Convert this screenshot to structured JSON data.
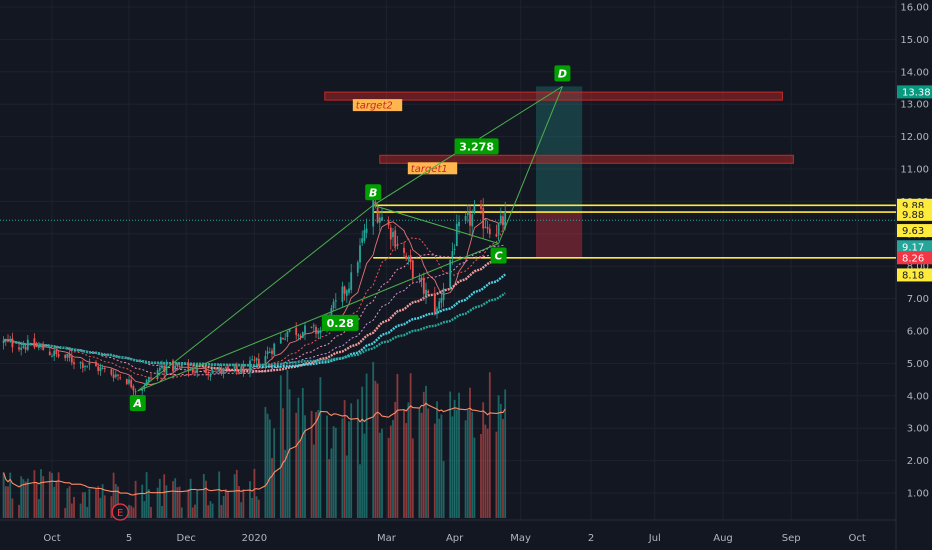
{
  "chart_data": {
    "type": "candlestick",
    "y_axis": {
      "side": "right",
      "ticks": [
        "1.00",
        "2.00",
        "3.00",
        "4.00",
        "5.00",
        "6.00",
        "7.00",
        "8.00",
        "9.00",
        "10.00",
        "11.00",
        "12.00",
        "13.00",
        "14.00",
        "15.00",
        "16.00"
      ],
      "range": [
        0.2,
        16.25
      ]
    },
    "x_axis": {
      "ticks": [
        {
          "label": "Oct",
          "date": "2019-10-01"
        },
        {
          "label": "5",
          "date": "2019-11-05"
        },
        {
          "label": "Dec",
          "date": "2019-12-01"
        },
        {
          "label": "2020",
          "date": "2020-01-01"
        },
        {
          "label": "Mar",
          "date": "2020-03-01"
        },
        {
          "label": "Apr",
          "date": "2020-04-01"
        },
        {
          "label": "May",
          "date": "2020-05-01"
        },
        {
          "label": "2",
          "date": "2020-06-02"
        },
        {
          "label": "Jul",
          "date": "2020-07-01"
        },
        {
          "label": "Aug",
          "date": "2020-08-01"
        },
        {
          "label": "Sep",
          "date": "2020-09-01"
        },
        {
          "label": "Oct",
          "date": "2020-10-01"
        }
      ]
    },
    "price_path": [
      {
        "date": "2019-09-09",
        "price": 5.65
      },
      {
        "date": "2019-09-25",
        "price": 5.5
      },
      {
        "date": "2019-10-03",
        "price": 5.25
      },
      {
        "date": "2019-10-20",
        "price": 4.9
      },
      {
        "date": "2019-11-03",
        "price": 4.55
      },
      {
        "date": "2019-11-09",
        "price": 4.15
      },
      {
        "date": "2019-11-20",
        "price": 4.9
      },
      {
        "date": "2019-12-05",
        "price": 4.8
      },
      {
        "date": "2019-12-25",
        "price": 4.75
      },
      {
        "date": "2020-01-04",
        "price": 5.1
      },
      {
        "date": "2020-01-16",
        "price": 6.0
      },
      {
        "date": "2020-01-31",
        "price": 6.0
      },
      {
        "date": "2020-02-14",
        "price": 7.6
      },
      {
        "date": "2020-02-24",
        "price": 9.88
      },
      {
        "date": "2020-03-04",
        "price": 9.0
      },
      {
        "date": "2020-03-14",
        "price": 7.7
      },
      {
        "date": "2020-03-24",
        "price": 6.6
      },
      {
        "date": "2020-04-02",
        "price": 9.0
      },
      {
        "date": "2020-04-10",
        "price": 9.6
      },
      {
        "date": "2020-04-20",
        "price": 9.1
      },
      {
        "date": "2020-04-26",
        "price": 9.63
      }
    ],
    "harmonic_pattern": {
      "points": [
        {
          "label": "A",
          "date": "2019-11-09",
          "price": 4.15
        },
        {
          "label": "B",
          "date": "2020-02-24",
          "price": 9.88
        },
        {
          "label": "C",
          "date": "2020-04-21",
          "price": 8.7
        },
        {
          "label": "D",
          "date": "2020-05-20",
          "price": 13.55
        }
      ],
      "ratios": [
        {
          "label": "0.28",
          "date": "2020-02-09",
          "price": 6.25
        },
        {
          "label": "3.278",
          "date": "2020-04-11",
          "price": 11.7
        }
      ]
    },
    "targets": [
      {
        "label": "target2",
        "price": 13.25,
        "date_start": "2020-02-02",
        "date_end": "2020-08-28"
      },
      {
        "label": "target1",
        "price": 11.3,
        "date_start": "2020-02-27",
        "date_end": "2020-09-02"
      }
    ],
    "horizontal_levels": [
      9.88,
      9.67,
      8.26
    ],
    "position_box": {
      "date_start": "2020-05-08",
      "date_end": "2020-05-29",
      "entry": 9.67,
      "target": 13.55,
      "stop": 8.26
    },
    "price_labels": [
      {
        "text": "13.38",
        "price": 13.38,
        "color": "#089981"
      },
      {
        "text": "9.88",
        "price": 9.88,
        "color": "#ffeb3b"
      },
      {
        "text": "9.88",
        "price": 9.6,
        "color": "#ffeb3b"
      },
      {
        "text": "9.63",
        "price": 9.1,
        "color": "#ffeb3b"
      },
      {
        "text": "9.17",
        "price": 8.6,
        "color": "#26a69a"
      },
      {
        "text": "8.26",
        "price": 8.26,
        "color": "#f23645"
      },
      {
        "text": "8.18",
        "price": 7.73,
        "color": "#ffeb3b"
      }
    ],
    "volume_marker": "E",
    "colors": {
      "background": "#131722",
      "up": "#26a69a",
      "down": "#ef5350",
      "level": "#ffeb3b",
      "pattern": "#4caf50",
      "target_box": "#c62828"
    }
  }
}
